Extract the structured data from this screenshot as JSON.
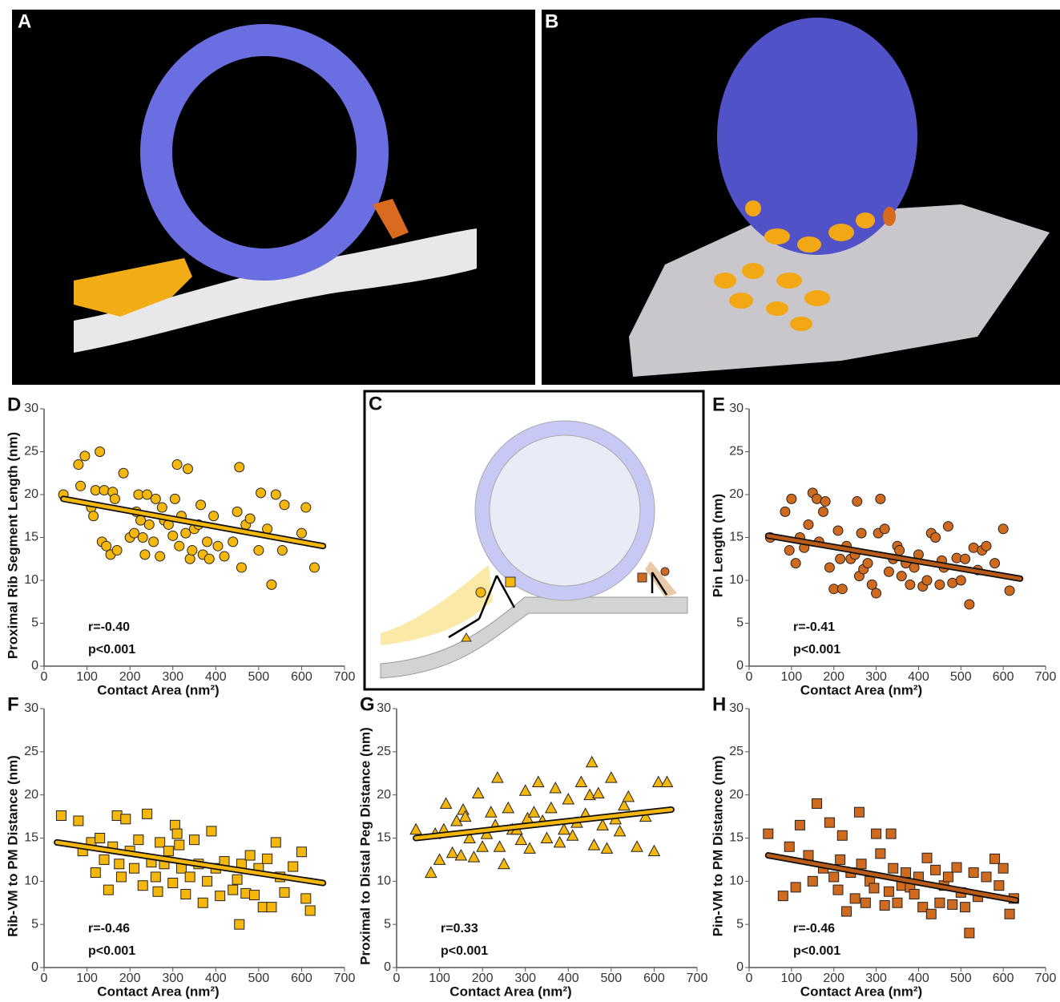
{
  "images": [
    {
      "label": "A"
    },
    {
      "label": "B"
    }
  ],
  "diagram": {
    "label": "C"
  },
  "chart_data": [
    {
      "type": "scatter",
      "label": "D",
      "ylabel": "Proximal Rib Segment Length (nm)",
      "xlabel": "Contact Area (nm²)",
      "annotations": [
        "r=-0.40",
        "p<0.001"
      ],
      "marker": "circle",
      "color": "#f6b70c",
      "line_color": "#f6b70c",
      "xlim": [
        0,
        700
      ],
      "ylim": [
        0,
        30
      ],
      "xticks": [
        0,
        100,
        200,
        300,
        400,
        500,
        600,
        700
      ],
      "yticks": [
        0,
        5,
        10,
        15,
        20,
        25,
        30
      ],
      "x": [
        45,
        80,
        85,
        95,
        110,
        115,
        120,
        130,
        135,
        140,
        145,
        155,
        160,
        165,
        170,
        185,
        200,
        210,
        215,
        220,
        225,
        230,
        235,
        240,
        245,
        255,
        260,
        270,
        275,
        280,
        290,
        300,
        305,
        310,
        315,
        320,
        330,
        335,
        340,
        345,
        350,
        360,
        365,
        370,
        380,
        385,
        395,
        405,
        420,
        440,
        450,
        455,
        460,
        470,
        480,
        500,
        505,
        520,
        530,
        540,
        555,
        560,
        600,
        610,
        630
      ],
      "values": [
        20,
        23.5,
        21,
        24.5,
        18.5,
        17.5,
        20.5,
        25,
        14.5,
        20.5,
        14,
        13,
        20.3,
        19.5,
        13.5,
        22.5,
        15,
        15.5,
        18,
        20,
        17,
        15,
        13,
        20,
        16.5,
        14.5,
        19.5,
        12.8,
        18.5,
        17,
        16.5,
        15.2,
        19.5,
        23.5,
        14,
        17.5,
        15.5,
        23,
        12.5,
        13.5,
        16,
        16.5,
        18.8,
        13,
        14.5,
        12.5,
        17.5,
        14,
        12.8,
        14.5,
        18,
        23.2,
        11.5,
        16.5,
        17.2,
        13.5,
        20.2,
        16,
        9.5,
        20,
        13.5,
        18.8,
        15.5,
        18.5,
        11.5
      ],
      "fit": {
        "x": [
          45,
          650
        ],
        "y": [
          19.5,
          14
        ]
      }
    },
    {
      "type": "scatter",
      "label": "E",
      "ylabel": "Pin Length (nm)",
      "xlabel": "Contact Area (nm²)",
      "annotations": [
        "r=-0.41",
        "p<0.001"
      ],
      "marker": "circle",
      "color": "#cf6a1e",
      "line_color": "#b85a1a",
      "xlim": [
        0,
        700
      ],
      "ylim": [
        0,
        30
      ],
      "xticks": [
        0,
        100,
        200,
        300,
        400,
        500,
        600,
        700
      ],
      "yticks": [
        0,
        5,
        10,
        15,
        20,
        25,
        30
      ],
      "x": [
        50,
        85,
        95,
        100,
        110,
        120,
        130,
        140,
        150,
        160,
        165,
        175,
        180,
        190,
        200,
        210,
        215,
        220,
        230,
        240,
        250,
        255,
        260,
        265,
        270,
        280,
        290,
        300,
        305,
        310,
        320,
        330,
        340,
        350,
        355,
        360,
        370,
        380,
        390,
        400,
        410,
        420,
        430,
        440,
        450,
        455,
        460,
        470,
        480,
        490,
        500,
        510,
        520,
        530,
        540,
        550,
        560,
        580,
        600,
        615
      ],
      "values": [
        15,
        18,
        13.5,
        19.5,
        12,
        15,
        13.8,
        16.5,
        20.2,
        19.5,
        14.5,
        18,
        19.2,
        11.5,
        9,
        15.8,
        12.5,
        9,
        14,
        12.5,
        13,
        19.2,
        10.5,
        15.5,
        11.3,
        12,
        9.5,
        8.5,
        15.5,
        19.5,
        16,
        11,
        12.5,
        14,
        13.5,
        10.5,
        12,
        9.5,
        11.5,
        13,
        9.3,
        10,
        15.5,
        15,
        9.5,
        12.3,
        11.5,
        16.3,
        9.7,
        12.6,
        10,
        12.5,
        7.2,
        13.8,
        11.2,
        13.5,
        14,
        12,
        16,
        8.8
      ],
      "fit": {
        "x": [
          45,
          640
        ],
        "y": [
          15.2,
          10.2
        ]
      }
    },
    {
      "type": "scatter",
      "label": "F",
      "ylabel": "Rib-VM to PM Distance (nm)",
      "xlabel": "Contact Area (nm²)",
      "annotations": [
        "r=-0.46",
        "p<0.001"
      ],
      "marker": "square",
      "color": "#f6b70c",
      "line_color": "#f6b70c",
      "xlim": [
        0,
        700
      ],
      "ylim": [
        0,
        30
      ],
      "xticks": [
        0,
        100,
        200,
        300,
        400,
        500,
        600,
        700
      ],
      "yticks": [
        0,
        5,
        10,
        15,
        20,
        25,
        30
      ],
      "x": [
        40,
        80,
        90,
        110,
        120,
        130,
        140,
        150,
        160,
        170,
        175,
        180,
        190,
        200,
        210,
        220,
        230,
        240,
        250,
        260,
        265,
        270,
        280,
        290,
        300,
        305,
        310,
        315,
        320,
        330,
        340,
        350,
        360,
        370,
        380,
        390,
        400,
        410,
        420,
        440,
        450,
        455,
        460,
        470,
        480,
        490,
        500,
        510,
        520,
        530,
        540,
        550,
        560,
        580,
        600,
        610,
        620
      ],
      "values": [
        17.6,
        17,
        13.5,
        14.5,
        11,
        15,
        12.5,
        9,
        14,
        17.6,
        12,
        10.5,
        17.2,
        13.5,
        11.5,
        14.8,
        9.5,
        17.8,
        12.2,
        10.5,
        8.8,
        14.5,
        12,
        13.5,
        9.8,
        16.5,
        15.5,
        14.2,
        11.5,
        8.5,
        10.5,
        14.8,
        12,
        7.5,
        10,
        15.8,
        11.5,
        8.3,
        12.3,
        9,
        10.2,
        5,
        12,
        8.6,
        13,
        8.4,
        11.5,
        7,
        12.6,
        7,
        14.5,
        10.5,
        8.7,
        11.7,
        13.4,
        8,
        6.6
      ],
      "fit": {
        "x": [
          30,
          650
        ],
        "y": [
          14.5,
          9.8
        ]
      }
    },
    {
      "type": "scatter",
      "label": "G",
      "ylabel": "Proximal to Distal Peg Distance (nm)",
      "xlabel": "Contact Area (nm²)",
      "annotations": [
        "r=0.33",
        "p<0.001"
      ],
      "marker": "triangle",
      "color": "#f6b70c",
      "line_color": "#f6b70c",
      "xlim": [
        0,
        700
      ],
      "ylim": [
        0,
        30
      ],
      "xticks": [
        0,
        100,
        200,
        300,
        400,
        500,
        600,
        700
      ],
      "yticks": [
        0,
        5,
        10,
        15,
        20,
        25,
        30
      ],
      "x": [
        45,
        80,
        90,
        100,
        110,
        115,
        130,
        140,
        150,
        155,
        160,
        170,
        180,
        190,
        200,
        210,
        220,
        230,
        235,
        240,
        250,
        260,
        270,
        280,
        290,
        300,
        305,
        310,
        320,
        330,
        340,
        350,
        360,
        370,
        380,
        390,
        400,
        410,
        420,
        430,
        440,
        450,
        455,
        460,
        470,
        480,
        490,
        500,
        510,
        520,
        530,
        540,
        560,
        580,
        600,
        610,
        630
      ],
      "values": [
        16,
        11,
        15.5,
        12.5,
        16,
        19,
        13.3,
        17,
        13,
        18.3,
        17.5,
        15,
        12.8,
        20.2,
        14,
        15.5,
        18,
        16.5,
        22,
        14,
        12,
        18.5,
        16,
        16,
        14.8,
        20.5,
        17.3,
        13.8,
        18,
        21.5,
        17,
        15,
        18.5,
        20.8,
        14.5,
        16,
        19.5,
        15.3,
        16.8,
        21.5,
        17.8,
        20,
        23.8,
        14.2,
        20.2,
        16.5,
        13.8,
        22,
        17.2,
        15.8,
        18.8,
        19.8,
        14,
        17.5,
        13.5,
        21.5,
        21.5
      ],
      "fit": {
        "x": [
          45,
          640
        ],
        "y": [
          15,
          18.3
        ]
      }
    },
    {
      "type": "scatter",
      "label": "H",
      "ylabel": "Pin-VM to PM Distance (nm)",
      "xlabel": "Contact Area (nm²)",
      "annotations": [
        "r=-0.46",
        "p<0.001"
      ],
      "marker": "square",
      "color": "#cf6a1e",
      "line_color": "#b85a1a",
      "xlim": [
        0,
        700
      ],
      "ylim": [
        0,
        30
      ],
      "xticks": [
        0,
        100,
        200,
        300,
        400,
        500,
        600,
        700
      ],
      "yticks": [
        0,
        5,
        10,
        15,
        20,
        25,
        30
      ],
      "x": [
        45,
        80,
        95,
        110,
        120,
        140,
        150,
        160,
        175,
        190,
        200,
        210,
        215,
        220,
        230,
        240,
        250,
        260,
        265,
        275,
        285,
        295,
        300,
        310,
        320,
        330,
        335,
        340,
        350,
        360,
        370,
        380,
        390,
        400,
        410,
        420,
        430,
        440,
        450,
        460,
        470,
        480,
        490,
        500,
        510,
        520,
        530,
        540,
        560,
        580,
        590,
        600,
        615,
        625
      ],
      "values": [
        15.5,
        8.3,
        14,
        9.3,
        16.5,
        13,
        10,
        19,
        11.5,
        16.8,
        10.5,
        9,
        12.5,
        15.3,
        6.5,
        11,
        8,
        18,
        12,
        7.5,
        10,
        9.2,
        15.5,
        13.2,
        7.2,
        8.8,
        15.5,
        11.5,
        7.5,
        9.5,
        11,
        9.3,
        8.5,
        10.5,
        7,
        12.7,
        6.2,
        11.3,
        7.5,
        9.5,
        10.5,
        7.3,
        11.6,
        8.7,
        7,
        4,
        11,
        8.2,
        10.5,
        12.6,
        9.5,
        11.5,
        6.2,
        8
      ],
      "fit": {
        "x": [
          45,
          630
        ],
        "y": [
          13,
          7.8
        ]
      }
    }
  ]
}
